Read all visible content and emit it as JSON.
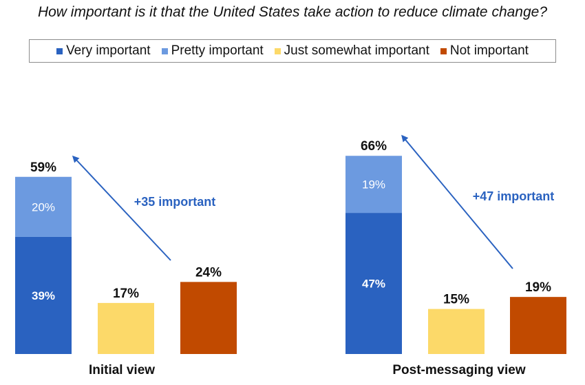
{
  "title": "How important is it that the United States take action to reduce climate change?",
  "colors": {
    "very": "#2a62c0",
    "pretty": "#6c9ae0",
    "somewhat": "#fcd969",
    "not": "#c14a00",
    "arrow": "#2a62c0"
  },
  "legend": [
    {
      "label": "Very important",
      "color_key": "very"
    },
    {
      "label": "Pretty important",
      "color_key": "pretty"
    },
    {
      "label": "Just somewhat important",
      "color_key": "somewhat"
    },
    {
      "label": "Not important",
      "color_key": "not"
    }
  ],
  "chart_data": [
    {
      "type": "bar",
      "title": "Initial view",
      "ylim": [
        0,
        66
      ],
      "bars": [
        {
          "segments": [
            {
              "series": "Very important",
              "value": 39,
              "label": "39%"
            },
            {
              "series": "Pretty important",
              "value": 20,
              "label": "20%"
            }
          ],
          "total_label": "59%"
        },
        {
          "segments": [
            {
              "series": "Just somewhat important",
              "value": 17
            }
          ],
          "total_label": "17%"
        },
        {
          "segments": [
            {
              "series": "Not important",
              "value": 24
            }
          ],
          "total_label": "24%"
        }
      ],
      "annotation": "+35 important"
    },
    {
      "type": "bar",
      "title": "Post-messaging view",
      "ylim": [
        0,
        66
      ],
      "bars": [
        {
          "segments": [
            {
              "series": "Very important",
              "value": 47,
              "label": "47%"
            },
            {
              "series": "Pretty important",
              "value": 19,
              "label": "19%"
            }
          ],
          "total_label": "66%"
        },
        {
          "segments": [
            {
              "series": "Just somewhat important",
              "value": 15
            }
          ],
          "total_label": "15%"
        },
        {
          "segments": [
            {
              "series": "Not important",
              "value": 19
            }
          ],
          "total_label": "19%"
        }
      ],
      "annotation": "+47 important"
    }
  ]
}
